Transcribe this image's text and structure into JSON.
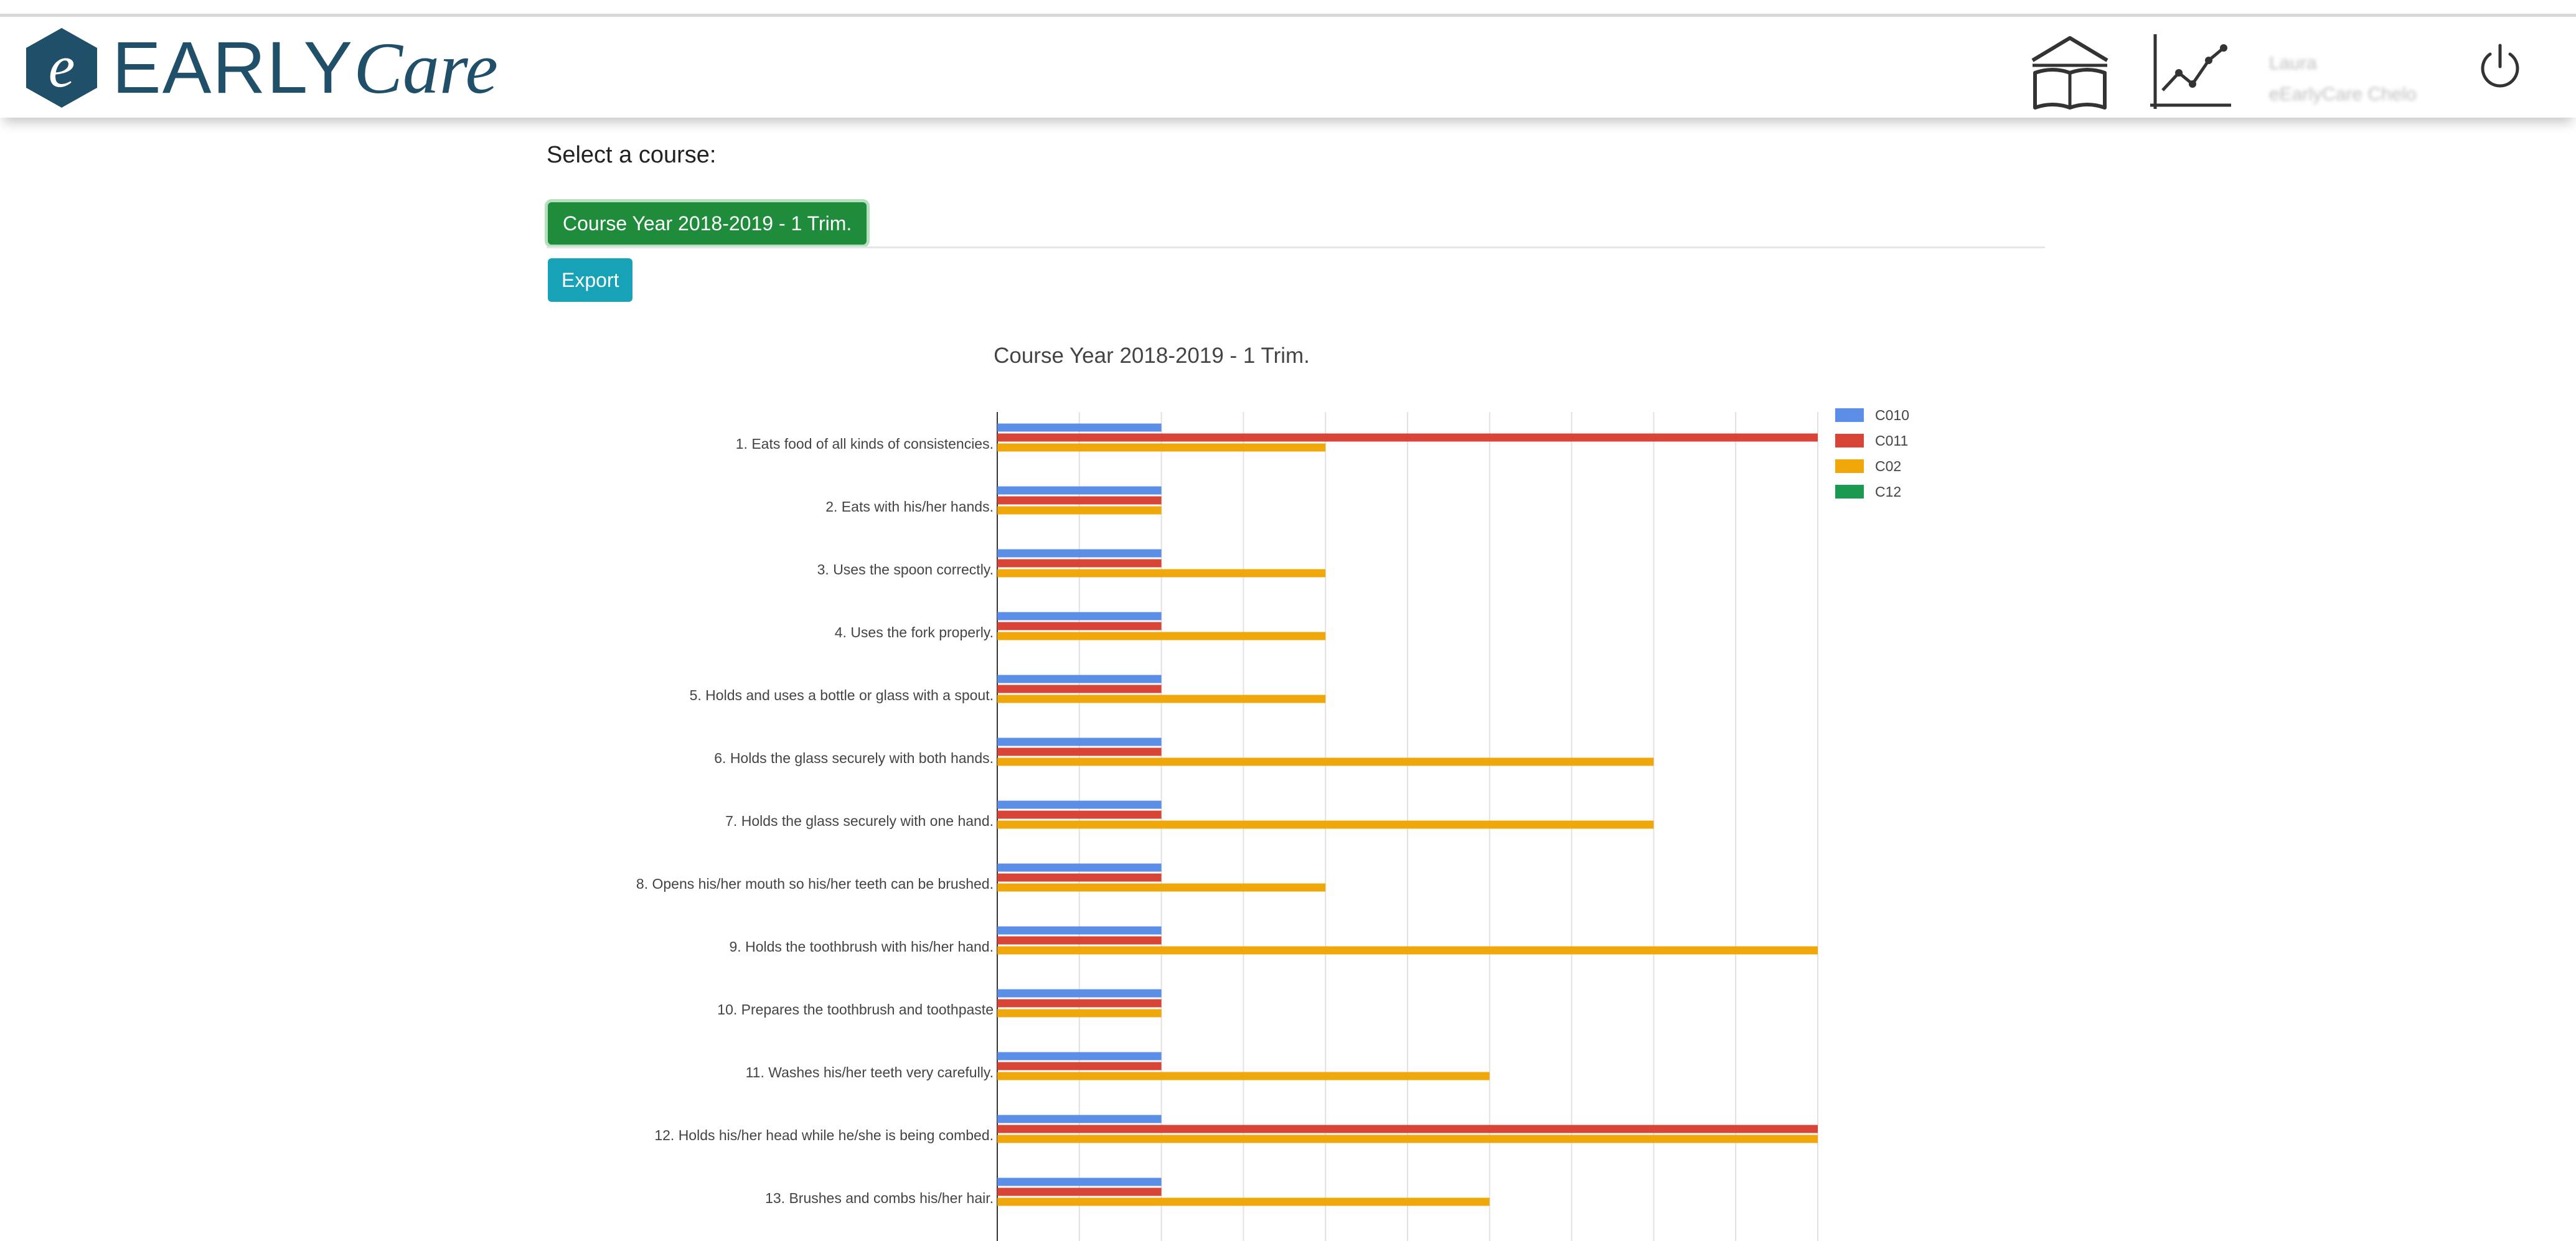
{
  "app": {
    "brand_prefix": "EARLY",
    "brand_suffix": "Care",
    "brand_letter": "e"
  },
  "header": {
    "icons": [
      "library-book-icon",
      "statistics-chart-icon",
      "power-icon"
    ],
    "user": {
      "name": "Laura",
      "organization": "eEarlyCare Chelo"
    }
  },
  "page": {
    "select_label": "Select a course:",
    "course_button": "Course Year 2018-2019 - 1 Trim.",
    "export_button": "Export"
  },
  "colors": {
    "brand": "#1f4f69",
    "course_button": "#1e8c3a",
    "export_button": "#17a2b8"
  },
  "chart_data": {
    "type": "bar",
    "orientation": "horizontal",
    "title": "Course Year 2018-2019 - 1 Trim.",
    "xlim": [
      0,
      10
    ],
    "grid": true,
    "legend_position": "top-right",
    "categories": [
      "1. Eats food of all kinds of consistencies.",
      "2. Eats with his/her hands.",
      "3. Uses the spoon correctly.",
      "4. Uses the fork properly.",
      "5. Holds and uses a bottle or glass with a spout.",
      "6. Holds the glass securely with both hands.",
      "7. Holds the glass securely with one hand.",
      "8. Opens his/her mouth so his/her teeth can be brushed.",
      "9. Holds the toothbrush with his/her hand.",
      "10. Prepares the toothbrush and toothpaste",
      "11. Washes his/her teeth very carefully.",
      "12. Holds his/her head while he/she is being combed.",
      "13. Brushes and combs his/her hair."
    ],
    "series": [
      {
        "name": "C010",
        "color": "#5b8ee6",
        "values": [
          2,
          2,
          2,
          2,
          2,
          2,
          2,
          2,
          2,
          2,
          2,
          2,
          2
        ]
      },
      {
        "name": "C011",
        "color": "#d84436",
        "values": [
          10,
          2,
          2,
          2,
          2,
          2,
          2,
          2,
          2,
          2,
          2,
          10,
          2
        ]
      },
      {
        "name": "C02",
        "color": "#f0a70a",
        "values": [
          4,
          2,
          4,
          4,
          4,
          8,
          8,
          4,
          10,
          2,
          6,
          10,
          6
        ]
      },
      {
        "name": "C12",
        "color": "#1a9a50",
        "values": [
          0,
          0,
          0,
          0,
          0,
          0,
          0,
          0,
          0,
          0,
          0,
          0,
          0
        ]
      }
    ]
  }
}
